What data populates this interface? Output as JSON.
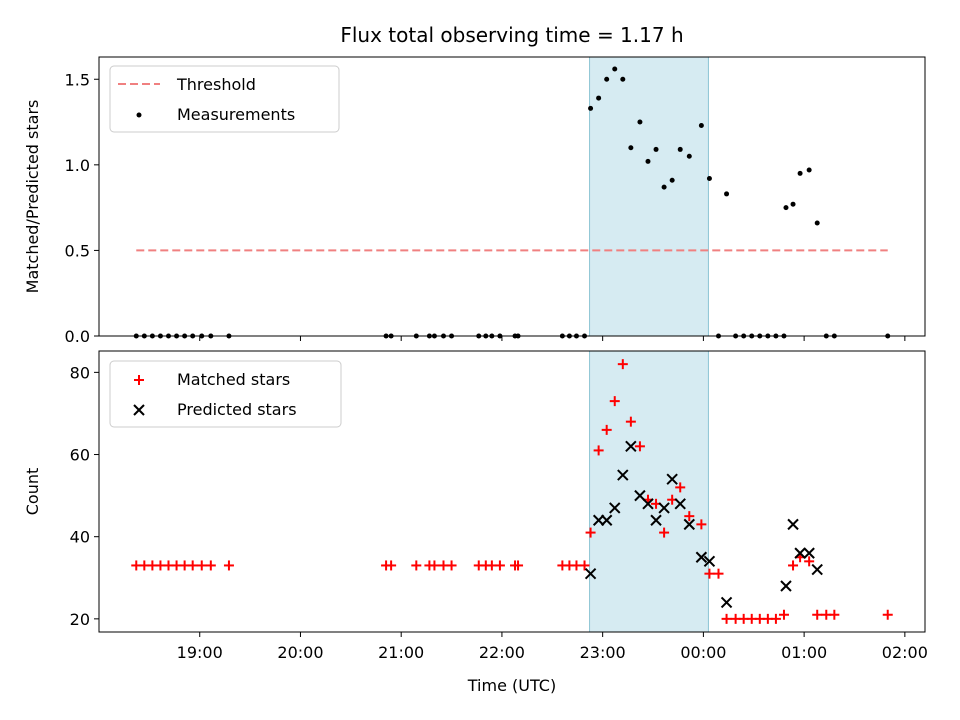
{
  "chart_data": {
    "type": "scatter",
    "title": "Flux total observing time = 1.17 h",
    "xlabel": "Time (UTC)",
    "x_tick_labels": [
      "19:00",
      "20:00",
      "21:00",
      "22:00",
      "23:00",
      "00:00",
      "01:00",
      "02:00"
    ],
    "x_tick_hours": [
      19,
      20,
      21,
      22,
      23,
      24,
      25,
      26
    ],
    "xlim_hours": [
      18.0,
      26.2
    ],
    "observing_window_hours": [
      22.87,
      24.05
    ],
    "colors": {
      "threshold": "#f08080",
      "measurements": "#000000",
      "matched": "#ff0000",
      "predicted": "#000000",
      "window": "#add8e6"
    },
    "panels": [
      {
        "id": "ratio",
        "ylabel": "Matched/Predicted stars",
        "ylim": [
          0,
          1.63
        ],
        "yticks": [
          0.0,
          0.5,
          1.0,
          1.5
        ],
        "ytick_labels": [
          "0.0",
          "0.5",
          "1.0",
          "1.5"
        ],
        "legend": {
          "placement": "upper-left",
          "entries": [
            "Threshold",
            "Measurements"
          ]
        },
        "threshold": {
          "name": "Threshold",
          "value": 0.5,
          "x_range_hours": [
            18.37,
            25.83
          ]
        },
        "series": [
          {
            "name": "Measurements",
            "marker": "dot",
            "points": [
              [
                18.37,
                0
              ],
              [
                18.45,
                0
              ],
              [
                18.53,
                0
              ],
              [
                18.61,
                0
              ],
              [
                18.69,
                0
              ],
              [
                18.77,
                0
              ],
              [
                18.85,
                0
              ],
              [
                18.93,
                0
              ],
              [
                19.02,
                0
              ],
              [
                19.11,
                0
              ],
              [
                19.29,
                0
              ],
              [
                20.85,
                0
              ],
              [
                20.9,
                0
              ],
              [
                21.15,
                0
              ],
              [
                21.28,
                0
              ],
              [
                21.33,
                0
              ],
              [
                21.42,
                0
              ],
              [
                21.5,
                0
              ],
              [
                21.77,
                0
              ],
              [
                21.84,
                0
              ],
              [
                21.9,
                0
              ],
              [
                21.98,
                0
              ],
              [
                22.13,
                0
              ],
              [
                22.16,
                0
              ],
              [
                22.6,
                0
              ],
              [
                22.67,
                0
              ],
              [
                22.74,
                0
              ],
              [
                22.82,
                0
              ],
              [
                22.88,
                1.33
              ],
              [
                22.96,
                1.39
              ],
              [
                23.04,
                1.5
              ],
              [
                23.12,
                1.56
              ],
              [
                23.2,
                1.5
              ],
              [
                23.28,
                1.1
              ],
              [
                23.37,
                1.25
              ],
              [
                23.45,
                1.02
              ],
              [
                23.53,
                1.09
              ],
              [
                23.61,
                0.87
              ],
              [
                23.69,
                0.91
              ],
              [
                23.77,
                1.09
              ],
              [
                23.86,
                1.05
              ],
              [
                23.98,
                1.23
              ],
              [
                24.06,
                0.92
              ],
              [
                24.15,
                0
              ],
              [
                24.23,
                0.83
              ],
              [
                24.32,
                0
              ],
              [
                24.4,
                0
              ],
              [
                24.48,
                0
              ],
              [
                24.56,
                0
              ],
              [
                24.64,
                0
              ],
              [
                24.72,
                0
              ],
              [
                24.8,
                0
              ],
              [
                24.82,
                0.75
              ],
              [
                24.89,
                0.77
              ],
              [
                24.96,
                0.95
              ],
              [
                25.05,
                0.97
              ],
              [
                25.13,
                0.66
              ],
              [
                25.22,
                0
              ],
              [
                25.3,
                0
              ],
              [
                25.83,
                0
              ]
            ]
          }
        ]
      },
      {
        "id": "counts",
        "ylabel": "Count",
        "ylim": [
          16.8,
          85.2
        ],
        "yticks": [
          20,
          40,
          60,
          80
        ],
        "ytick_labels": [
          "20",
          "40",
          "60",
          "80"
        ],
        "legend": {
          "placement": "upper-left",
          "entries": [
            "Matched stars",
            "Predicted stars"
          ]
        },
        "series": [
          {
            "name": "Matched stars",
            "marker": "plus",
            "points": [
              [
                18.37,
                33
              ],
              [
                18.45,
                33
              ],
              [
                18.53,
                33
              ],
              [
                18.61,
                33
              ],
              [
                18.69,
                33
              ],
              [
                18.77,
                33
              ],
              [
                18.85,
                33
              ],
              [
                18.93,
                33
              ],
              [
                19.02,
                33
              ],
              [
                19.11,
                33
              ],
              [
                19.29,
                33
              ],
              [
                20.85,
                33
              ],
              [
                20.9,
                33
              ],
              [
                21.15,
                33
              ],
              [
                21.28,
                33
              ],
              [
                21.33,
                33
              ],
              [
                21.42,
                33
              ],
              [
                21.5,
                33
              ],
              [
                21.77,
                33
              ],
              [
                21.84,
                33
              ],
              [
                21.9,
                33
              ],
              [
                21.98,
                33
              ],
              [
                22.13,
                33
              ],
              [
                22.16,
                33
              ],
              [
                22.6,
                33
              ],
              [
                22.67,
                33
              ],
              [
                22.74,
                33
              ],
              [
                22.82,
                33
              ],
              [
                22.88,
                41
              ],
              [
                22.96,
                61
              ],
              [
                23.04,
                66
              ],
              [
                23.12,
                73
              ],
              [
                23.2,
                82
              ],
              [
                23.28,
                68
              ],
              [
                23.37,
                62
              ],
              [
                23.45,
                49
              ],
              [
                23.53,
                48
              ],
              [
                23.61,
                41
              ],
              [
                23.69,
                49
              ],
              [
                23.77,
                52
              ],
              [
                23.86,
                45
              ],
              [
                23.98,
                43
              ],
              [
                24.06,
                31
              ],
              [
                24.15,
                31
              ],
              [
                24.23,
                20
              ],
              [
                24.32,
                20
              ],
              [
                24.4,
                20
              ],
              [
                24.48,
                20
              ],
              [
                24.56,
                20
              ],
              [
                24.64,
                20
              ],
              [
                24.72,
                20
              ],
              [
                24.8,
                21
              ],
              [
                24.89,
                33
              ],
              [
                24.96,
                35
              ],
              [
                25.05,
                34
              ],
              [
                25.13,
                21
              ],
              [
                25.22,
                21
              ],
              [
                25.3,
                21
              ],
              [
                25.83,
                21
              ]
            ]
          },
          {
            "name": "Predicted stars",
            "marker": "x",
            "points": [
              [
                22.88,
                31
              ],
              [
                22.96,
                44
              ],
              [
                23.04,
                44
              ],
              [
                23.12,
                47
              ],
              [
                23.2,
                55
              ],
              [
                23.28,
                62
              ],
              [
                23.37,
                50
              ],
              [
                23.45,
                48
              ],
              [
                23.53,
                44
              ],
              [
                23.61,
                47
              ],
              [
                23.69,
                54
              ],
              [
                23.77,
                48
              ],
              [
                23.86,
                43
              ],
              [
                23.98,
                35
              ],
              [
                24.06,
                34
              ],
              [
                24.23,
                24
              ],
              [
                24.82,
                28
              ],
              [
                24.89,
                43
              ],
              [
                24.96,
                36
              ],
              [
                25.05,
                36
              ],
              [
                25.13,
                32
              ]
            ]
          }
        ]
      }
    ]
  }
}
